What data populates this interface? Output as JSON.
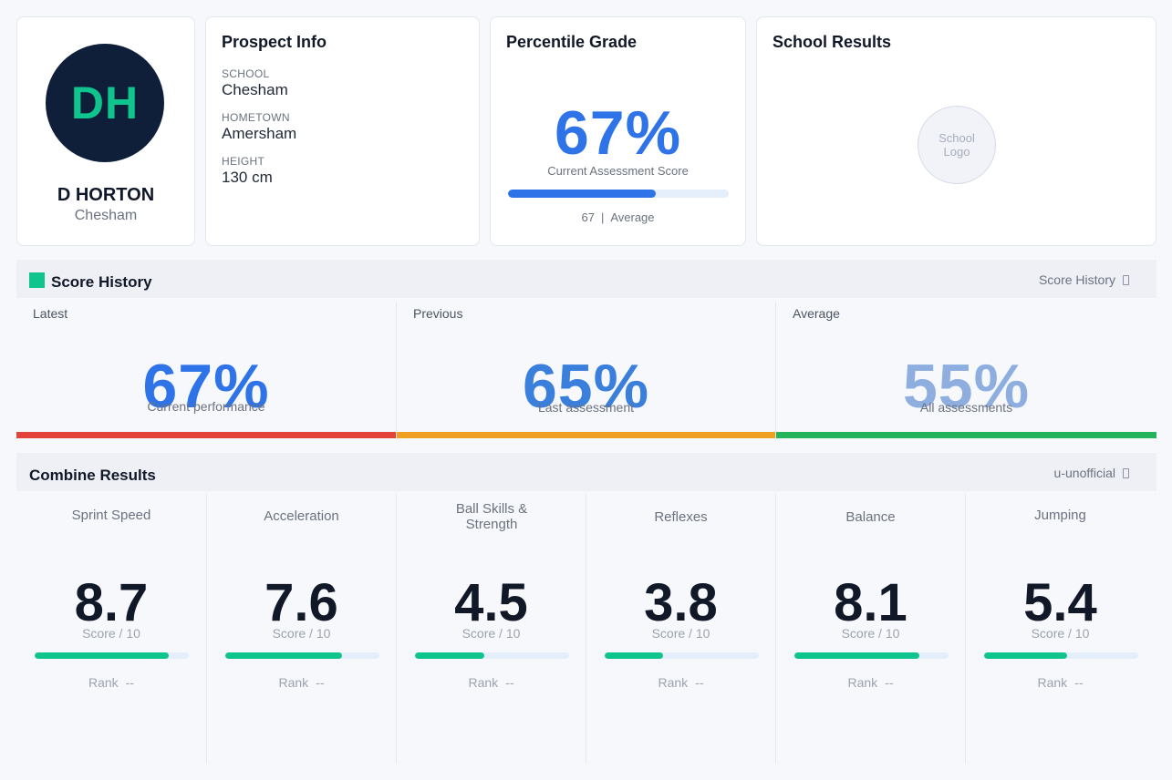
{
  "profile": {
    "initials": "DH",
    "name": "D HORTON",
    "school": "Chesham"
  },
  "prospect_info": {
    "title": "Prospect Info",
    "fields": [
      {
        "label": "SCHOOL",
        "value": "Chesham"
      },
      {
        "label": "HOMETOWN",
        "value": "Amersham"
      },
      {
        "label": "HEIGHT",
        "value": "130 cm"
      }
    ]
  },
  "percentile": {
    "title": "Percentile Grade",
    "value_text": "67%",
    "value": 67,
    "subtitle": "Current Assessment Score",
    "footer_value": "67",
    "footer_sep": "|",
    "footer_label": "Average"
  },
  "school_results": {
    "title": "School Results",
    "logo_line1": "School",
    "logo_line2": "Logo"
  },
  "score_history": {
    "title": "Score History",
    "right_label": "Score History",
    "right_icon": "external-link-icon",
    "columns": [
      {
        "label": "Latest",
        "value": "67%",
        "sub": "Current performance",
        "value_color": "#2f73e8",
        "bar_color": "#e2443c"
      },
      {
        "label": "Previous",
        "value": "65%",
        "sub": "Last assessment",
        "value_color": "#3b7fdc",
        "bar_color": "#f0a020"
      },
      {
        "label": "Average",
        "value": "55%",
        "sub": "All assessments",
        "value_color": "#8eaee0",
        "bar_color": "#22b35b"
      }
    ]
  },
  "combine": {
    "title": "Combine Results",
    "right_label": "u-unofficial",
    "right_icon": "external-link-icon",
    "score_suffix": "Score / 10",
    "rank_label": "Rank",
    "rank_value": "--",
    "metrics": [
      {
        "name": "Sprint Speed",
        "value": "8.7",
        "score": 8.7
      },
      {
        "name": "Acceleration",
        "value": "7.6",
        "score": 7.6
      },
      {
        "name": "Ball Skills & Strength",
        "value": "4.5",
        "score": 4.5
      },
      {
        "name": "Reflexes",
        "value": "3.8",
        "score": 3.8
      },
      {
        "name": "Balance",
        "value": "8.1",
        "score": 8.1
      },
      {
        "name": "Jumping",
        "value": "5.4",
        "score": 5.4
      }
    ]
  },
  "colors": {
    "accent_blue": "#2f73e8",
    "accent_green": "#10c48e",
    "avatar_bg": "#0f1f3a"
  }
}
